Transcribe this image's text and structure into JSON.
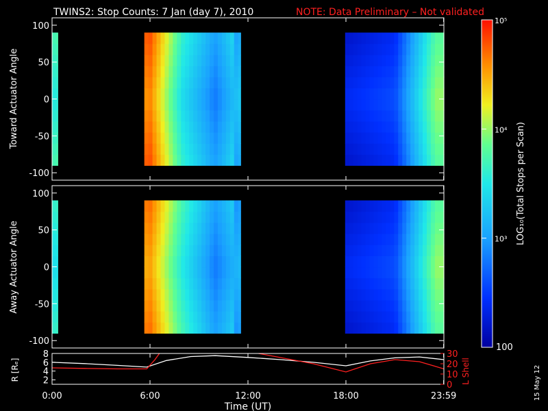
{
  "header": {
    "title": "TWINS2: Stop Counts:  7 Jan (day   7), 2010",
    "note": "NOTE: Data Preliminary – Not validated",
    "note_color": "#ff2020"
  },
  "stamp": "15 May 12",
  "chart_data": [
    {
      "type": "heatmap",
      "ylabel": "Toward Actuator Angle",
      "ylim": [
        -110,
        110
      ],
      "yticks": [
        -100,
        -50,
        0,
        50,
        100
      ],
      "xlim": [
        0,
        24
      ],
      "data_range_deg": [
        -90,
        90
      ],
      "data_intervals_hours": [
        [
          0,
          0.35
        ],
        [
          5.65,
          11.55
        ],
        [
          17.95,
          24
        ]
      ],
      "colorscale": "rainbow (blue = low, red = high)",
      "approx_log10_counts_by_hour": {
        "0.0": 3.5,
        "6.0": 4.6,
        "8.0": 3.4,
        "10.0": 2.8,
        "11.5": 3.3,
        "18.0": 2.4,
        "21.0": 2.6,
        "23.5": 4.0
      }
    },
    {
      "type": "heatmap",
      "ylabel": "Away Actuator Angle",
      "ylim": [
        -110,
        110
      ],
      "yticks": [
        -100,
        -50,
        0,
        50,
        100
      ],
      "xlim": [
        0,
        24
      ],
      "data_range_deg": [
        -90,
        90
      ],
      "data_intervals_hours": [
        [
          0,
          0.35
        ],
        [
          5.65,
          11.55
        ],
        [
          17.95,
          24
        ]
      ],
      "colorscale": "rainbow (blue = low, red = high)",
      "approx_log10_counts_by_hour": {
        "0.0": 3.4,
        "6.0": 4.5,
        "8.0": 3.5,
        "10.0": 2.8,
        "11.5": 3.2,
        "18.0": 2.4,
        "21.0": 2.6,
        "23.5": 4.0
      }
    },
    {
      "type": "line",
      "xlabel": "Time (UT)",
      "xlim": [
        0,
        24
      ],
      "xticks": [
        0,
        6,
        12,
        18,
        23.983
      ],
      "xtick_labels": [
        "0:00",
        "6:00",
        "12:00",
        "18:00",
        "23:59"
      ],
      "left_axis": {
        "label": "R [Rₑ]",
        "ylim": [
          1,
          8
        ],
        "ticks": [
          2,
          4,
          6,
          8
        ]
      },
      "right_axis": {
        "label": "L Shell",
        "ylim": [
          0,
          30
        ],
        "ticks": [
          0,
          10,
          20,
          30
        ],
        "color": "#ff2020"
      },
      "series": [
        {
          "axis": "left",
          "color": "#ffffff",
          "x": [
            0,
            2,
            4,
            5.8,
            7,
            8.5,
            10,
            12,
            14,
            16,
            18,
            19.5,
            21,
            22.5,
            24
          ],
          "y": [
            6.0,
            5.7,
            5.3,
            4.9,
            6.4,
            7.3,
            7.5,
            7.1,
            6.6,
            6.0,
            5.2,
            6.3,
            7.0,
            7.2,
            6.6
          ]
        },
        {
          "axis": "right",
          "color": "#ff2020",
          "x": [
            0,
            2,
            4,
            5.8,
            6.3,
            6.8,
            11.5,
            12.5,
            16,
            18,
            19.5,
            21,
            22.5,
            24
          ],
          "y": [
            16,
            15.5,
            15,
            15,
            24,
            35,
            35,
            30.5,
            20,
            12,
            20,
            24,
            22,
            15
          ]
        }
      ]
    }
  ],
  "colorbar": {
    "label": "LOG₁₀(Total Stops per Scan)",
    "min_label": "100",
    "tick_labels": [
      "10³",
      "10⁴",
      "10⁵"
    ],
    "log10_range": [
      2,
      5
    ]
  }
}
